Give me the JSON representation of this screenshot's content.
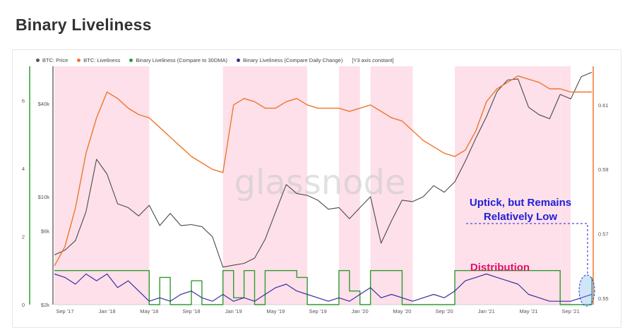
{
  "page": {
    "title": "Binary Liveliness"
  },
  "watermark": "glassnode",
  "legend": {
    "items": [
      {
        "label": "BTC: Price",
        "color": "#555555"
      },
      {
        "label": "BTC: Liveliness",
        "color": "#f0752a"
      },
      {
        "label": "Binary Liveliness (Compare to 30DMA)",
        "color": "#2e9d2e"
      },
      {
        "label": "Binary Liveliness (Compare Daily Change)",
        "color": "#3b2fa0"
      }
    ],
    "note": "[Y3 axis constant]"
  },
  "annotations": {
    "uptick_line1": "Uptick, but Remains",
    "uptick_line2": "Relatively Low",
    "distribution": "Distribution"
  },
  "colors": {
    "highlight_band": "#fde0ea",
    "uptick_text": "#1f1fd6",
    "distribution_text": "#e0106a",
    "left_axis": "#2e9d2e",
    "right_axis": "#f0752a"
  },
  "chart_data": {
    "type": "line",
    "x_ticks": [
      "Sep '17",
      "Jan '18",
      "May '18",
      "Sep '18",
      "Jan '19",
      "May '19",
      "Sep '19",
      "Jan '20",
      "May '20",
      "Sep '20",
      "Jan '21",
      "May '21",
      "Sep '21"
    ],
    "y_left_ticks": [
      "0",
      "2",
      "4",
      "6"
    ],
    "y_price_ticks": [
      "$2k",
      "$6k",
      "$10k",
      "$40k"
    ],
    "y_right_ticks": [
      "0.55",
      "0.57",
      "0.59",
      "0.61"
    ],
    "highlight_periods": [
      [
        "2017-08",
        "2018-04"
      ],
      [
        "2018-12",
        "2019-03"
      ],
      [
        "2019-04",
        "2019-07"
      ],
      [
        "2019-11",
        "2019-12"
      ],
      [
        "2020-02",
        "2020-05"
      ],
      [
        "2020-10",
        "2021-07"
      ],
      [
        "2021-08",
        "2021-08"
      ]
    ],
    "series": [
      {
        "name": "BTC: Price",
        "unit": "USD",
        "points": [
          [
            "2017-08",
            4200
          ],
          [
            "2017-09",
            4500
          ],
          [
            "2017-10",
            5200
          ],
          [
            "2017-11",
            8000
          ],
          [
            "2017-12",
            17500
          ],
          [
            "2018-01",
            14000
          ],
          [
            "2018-02",
            9000
          ],
          [
            "2018-03",
            8500
          ],
          [
            "2018-04",
            7500
          ],
          [
            "2018-05",
            8800
          ],
          [
            "2018-06",
            6500
          ],
          [
            "2018-07",
            7800
          ],
          [
            "2018-08",
            6500
          ],
          [
            "2018-09",
            6600
          ],
          [
            "2018-10",
            6400
          ],
          [
            "2018-11",
            5500
          ],
          [
            "2018-12",
            3500
          ],
          [
            "2019-01",
            3600
          ],
          [
            "2019-02",
            3700
          ],
          [
            "2019-03",
            4000
          ],
          [
            "2019-04",
            5300
          ],
          [
            "2019-05",
            8000
          ],
          [
            "2019-06",
            12000
          ],
          [
            "2019-07",
            10500
          ],
          [
            "2019-08",
            10200
          ],
          [
            "2019-09",
            9500
          ],
          [
            "2019-10",
            8300
          ],
          [
            "2019-11",
            8500
          ],
          [
            "2019-12",
            7200
          ],
          [
            "2020-01",
            8500
          ],
          [
            "2020-02",
            10000
          ],
          [
            "2020-03",
            5000
          ],
          [
            "2020-04",
            7000
          ],
          [
            "2020-05",
            9500
          ],
          [
            "2020-06",
            9300
          ],
          [
            "2020-07",
            10000
          ],
          [
            "2020-08",
            11800
          ],
          [
            "2020-09",
            10700
          ],
          [
            "2020-10",
            12500
          ],
          [
            "2020-11",
            17000
          ],
          [
            "2020-12",
            24000
          ],
          [
            "2021-01",
            33000
          ],
          [
            "2021-02",
            48000
          ],
          [
            "2021-03",
            57000
          ],
          [
            "2021-04",
            58000
          ],
          [
            "2021-05",
            38000
          ],
          [
            "2021-06",
            34000
          ],
          [
            "2021-07",
            32000
          ],
          [
            "2021-08",
            46000
          ],
          [
            "2021-09",
            43000
          ],
          [
            "2021-10",
            60000
          ],
          [
            "2021-11",
            64000
          ]
        ]
      },
      {
        "name": "BTC: Liveliness",
        "points": [
          [
            "2017-08",
            0.56
          ],
          [
            "2017-09",
            0.566
          ],
          [
            "2017-10",
            0.578
          ],
          [
            "2017-11",
            0.595
          ],
          [
            "2017-12",
            0.606
          ],
          [
            "2018-01",
            0.614
          ],
          [
            "2018-02",
            0.612
          ],
          [
            "2018-03",
            0.609
          ],
          [
            "2018-04",
            0.607
          ],
          [
            "2018-05",
            0.606
          ],
          [
            "2018-06",
            0.603
          ],
          [
            "2018-07",
            0.6
          ],
          [
            "2018-08",
            0.597
          ],
          [
            "2018-09",
            0.594
          ],
          [
            "2018-10",
            0.592
          ],
          [
            "2018-11",
            0.59
          ],
          [
            "2018-12",
            0.589
          ],
          [
            "2019-01",
            0.61
          ],
          [
            "2019-02",
            0.612
          ],
          [
            "2019-03",
            0.611
          ],
          [
            "2019-04",
            0.609
          ],
          [
            "2019-05",
            0.609
          ],
          [
            "2019-06",
            0.611
          ],
          [
            "2019-07",
            0.612
          ],
          [
            "2019-08",
            0.61
          ],
          [
            "2019-09",
            0.609
          ],
          [
            "2019-10",
            0.609
          ],
          [
            "2019-11",
            0.609
          ],
          [
            "2019-12",
            0.608
          ],
          [
            "2020-01",
            0.609
          ],
          [
            "2020-02",
            0.61
          ],
          [
            "2020-03",
            0.608
          ],
          [
            "2020-04",
            0.606
          ],
          [
            "2020-05",
            0.605
          ],
          [
            "2020-06",
            0.602
          ],
          [
            "2020-07",
            0.599
          ],
          [
            "2020-08",
            0.597
          ],
          [
            "2020-09",
            0.595
          ],
          [
            "2020-10",
            0.594
          ],
          [
            "2020-11",
            0.596
          ],
          [
            "2020-12",
            0.602
          ],
          [
            "2021-01",
            0.611
          ],
          [
            "2021-02",
            0.615
          ],
          [
            "2021-03",
            0.617
          ],
          [
            "2021-04",
            0.619
          ],
          [
            "2021-05",
            0.618
          ],
          [
            "2021-06",
            0.617
          ],
          [
            "2021-07",
            0.615
          ],
          [
            "2021-08",
            0.615
          ],
          [
            "2021-09",
            0.614
          ],
          [
            "2021-10",
            0.614
          ],
          [
            "2021-11",
            0.614
          ]
        ]
      },
      {
        "name": "Binary Liveliness (Compare to 30DMA)",
        "points": [
          [
            "2017-08",
            1.0
          ],
          [
            "2018-04",
            1.0
          ],
          [
            "2018-05",
            0
          ],
          [
            "2018-06",
            0.8
          ],
          [
            "2018-07",
            0
          ],
          [
            "2018-09",
            0.7
          ],
          [
            "2018-10",
            0
          ],
          [
            "2018-12",
            1.0
          ],
          [
            "2019-01",
            0.2
          ],
          [
            "2019-02",
            1.0
          ],
          [
            "2019-03",
            0
          ],
          [
            "2019-04",
            1.0
          ],
          [
            "2019-07",
            0.8
          ],
          [
            "2019-08",
            0
          ],
          [
            "2019-11",
            1.0
          ],
          [
            "2019-12",
            0.4
          ],
          [
            "2020-01",
            0
          ],
          [
            "2020-02",
            1.0
          ],
          [
            "2020-05",
            0
          ],
          [
            "2020-10",
            1.0
          ],
          [
            "2021-07",
            1.0
          ],
          [
            "2021-08",
            0
          ],
          [
            "2021-11",
            0.8
          ]
        ]
      },
      {
        "name": "Binary Liveliness (Compare Daily Change)",
        "points": [
          [
            "2017-08",
            0.9
          ],
          [
            "2017-09",
            0.8
          ],
          [
            "2017-10",
            0.6
          ],
          [
            "2017-11",
            0.9
          ],
          [
            "2017-12",
            0.7
          ],
          [
            "2018-01",
            0.9
          ],
          [
            "2018-02",
            0.5
          ],
          [
            "2018-03",
            0.7
          ],
          [
            "2018-04",
            0.4
          ],
          [
            "2018-05",
            0.1
          ],
          [
            "2018-06",
            0.2
          ],
          [
            "2018-07",
            0.1
          ],
          [
            "2018-08",
            0.3
          ],
          [
            "2018-09",
            0.4
          ],
          [
            "2018-10",
            0.2
          ],
          [
            "2018-11",
            0.1
          ],
          [
            "2018-12",
            0.3
          ],
          [
            "2019-01",
            0.1
          ],
          [
            "2019-02",
            0.2
          ],
          [
            "2019-03",
            0.1
          ],
          [
            "2019-04",
            0.3
          ],
          [
            "2019-05",
            0.5
          ],
          [
            "2019-06",
            0.6
          ],
          [
            "2019-07",
            0.4
          ],
          [
            "2019-08",
            0.3
          ],
          [
            "2019-09",
            0.2
          ],
          [
            "2019-10",
            0.1
          ],
          [
            "2019-11",
            0.2
          ],
          [
            "2019-12",
            0.1
          ],
          [
            "2020-01",
            0.3
          ],
          [
            "2020-02",
            0.5
          ],
          [
            "2020-03",
            0.2
          ],
          [
            "2020-04",
            0.3
          ],
          [
            "2020-05",
            0.2
          ],
          [
            "2020-06",
            0.1
          ],
          [
            "2020-07",
            0.2
          ],
          [
            "2020-08",
            0.3
          ],
          [
            "2020-09",
            0.2
          ],
          [
            "2020-10",
            0.4
          ],
          [
            "2020-11",
            0.7
          ],
          [
            "2020-12",
            0.8
          ],
          [
            "2021-01",
            0.9
          ],
          [
            "2021-02",
            0.8
          ],
          [
            "2021-03",
            0.7
          ],
          [
            "2021-04",
            0.6
          ],
          [
            "2021-05",
            0.3
          ],
          [
            "2021-06",
            0.2
          ],
          [
            "2021-07",
            0.1
          ],
          [
            "2021-08",
            0.1
          ],
          [
            "2021-09",
            0.1
          ],
          [
            "2021-10",
            0.2
          ],
          [
            "2021-11",
            0.3
          ]
        ]
      }
    ]
  }
}
